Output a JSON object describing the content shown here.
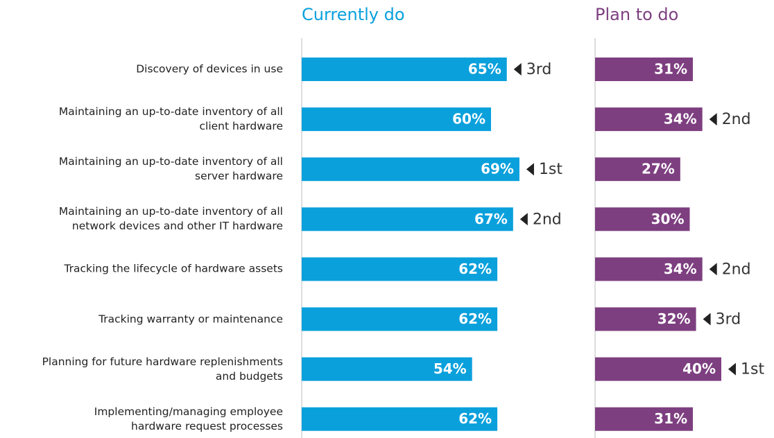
{
  "chart_data": {
    "type": "bar",
    "orientation": "horizontal",
    "categories": [
      "Discovery of devices in use",
      "Maintaining an up-to-date inventory of all\nclient hardware",
      "Maintaining an up-to-date inventory of all\nserver hardware",
      "Maintaining an up-to-date inventory of all\nnetwork devices and other IT hardware",
      "Tracking the lifecycle of hardware assets",
      "Tracking warranty or maintenance",
      "Planning for future hardware replenishments\nand budgets",
      "Implementing/managing employee\nhardware request processes"
    ],
    "series": [
      {
        "name": "Currently do",
        "color": "#0aa0dc",
        "values": [
          65,
          60,
          69,
          67,
          62,
          62,
          54,
          62
        ],
        "value_labels": [
          "65%",
          "60%",
          "69%",
          "67%",
          "62%",
          "62%",
          "54%",
          "62%"
        ],
        "annotations": [
          "3rd",
          null,
          "1st",
          "2nd",
          null,
          null,
          null,
          null
        ]
      },
      {
        "name": "Plan to do",
        "color": "#7d3f80",
        "values": [
          31,
          34,
          27,
          30,
          34,
          32,
          40,
          31
        ],
        "value_labels": [
          "31%",
          "34%",
          "27%",
          "30%",
          "34%",
          "32%",
          "40%",
          "31%"
        ],
        "annotations": [
          null,
          "2nd",
          null,
          null,
          "2nd",
          "3rd",
          "1st",
          null
        ]
      }
    ]
  }
}
